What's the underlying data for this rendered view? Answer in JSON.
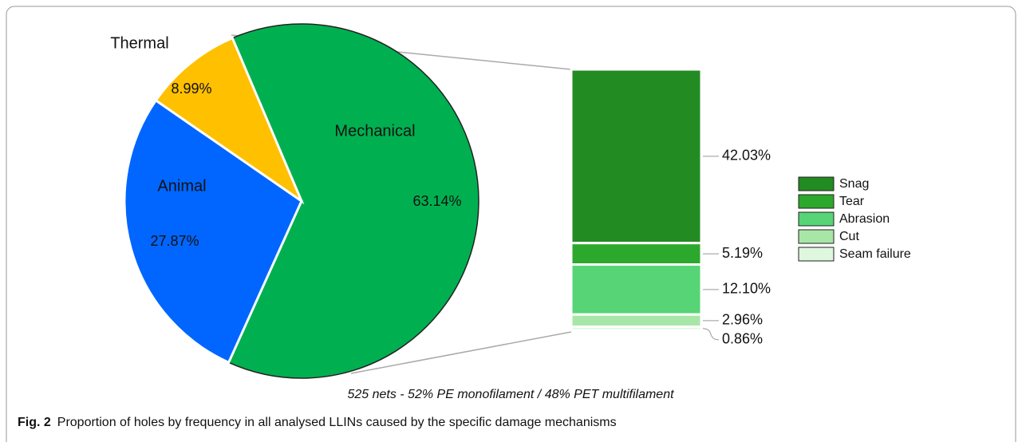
{
  "chart_data": [
    {
      "type": "pie",
      "categories": [
        "Mechanical",
        "Animal",
        "Thermal"
      ],
      "values": [
        63.14,
        27.87,
        8.99
      ],
      "value_labels": [
        "63.14%",
        "27.87%",
        "8.99%"
      ],
      "colors": [
        "#00b050",
        "#0066ff",
        "#ffc000"
      ]
    },
    {
      "type": "stacked-bar",
      "categories": [
        "Snag",
        "Tear",
        "Abrasion",
        "Cut",
        "Seam failure"
      ],
      "values": [
        42.03,
        5.19,
        12.1,
        2.96,
        0.86
      ],
      "value_labels": [
        "42.03%",
        "5.19%",
        "12.10%",
        "2.96%",
        "0.86%"
      ],
      "colors": [
        "#228b22",
        "#2ca82c",
        "#57d475",
        "#a8e6a8",
        "#dff7df"
      ],
      "legend": "right"
    }
  ],
  "note": "525 nets - 52% PE monofilament / 48% PET multifilament",
  "figure": {
    "label": "Fig. 2",
    "caption": "Proportion of holes by frequency in all analysed LLINs caused by the specific damage mechanisms"
  }
}
